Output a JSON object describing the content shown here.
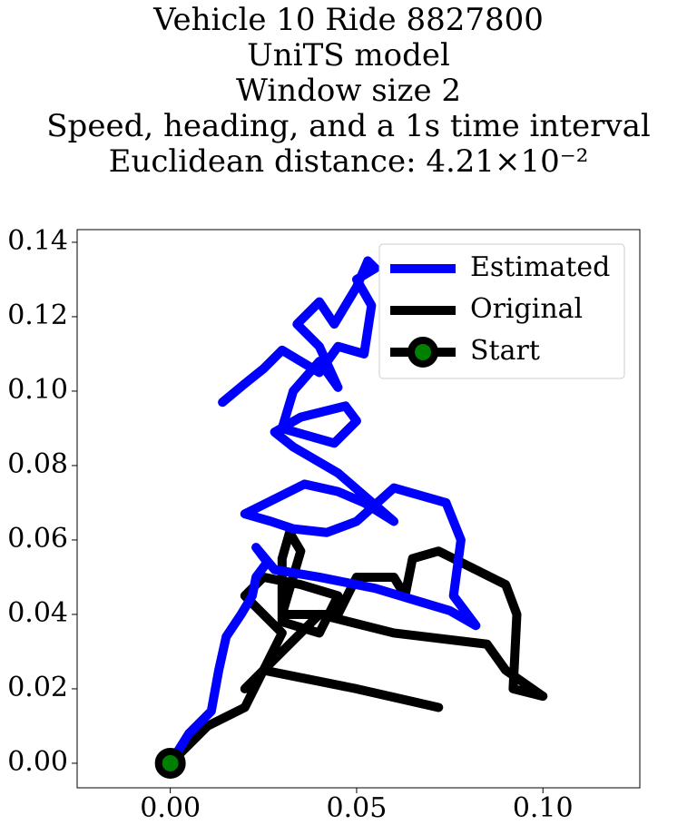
{
  "chart_data": {
    "type": "line",
    "title": [
      "Vehicle 10 Ride 8827800",
      "UniTS model",
      "Window size 2",
      "Speed, heading, and a 1s time interval",
      "Euclidean distance: 4.21×10⁻²"
    ],
    "series": [
      {
        "name": "Estimated",
        "color": "#0000ff",
        "x": [
          0,
          0.005,
          0.011,
          0.013,
          0.015,
          0.019,
          0.022,
          0.023,
          0.026,
          0.023,
          0.028,
          0.04,
          0.055,
          0.065,
          0.075,
          0.082,
          0.076,
          0.078,
          0.074,
          0.06,
          0.05,
          0.042,
          0.033,
          0.027,
          0.02,
          0.026,
          0.036,
          0.045,
          0.052,
          0.06,
          0.045,
          0.033,
          0.028,
          0.035,
          0.047,
          0.05,
          0.044,
          0.03,
          0.033,
          0.04,
          0.045,
          0.04,
          0.034,
          0.04,
          0.044,
          0.05,
          0.053,
          0.055,
          0.05,
          0.054,
          0.052,
          0.045,
          0.04,
          0.03,
          0.025,
          0.02,
          0.014
        ],
        "y": [
          0,
          0.008,
          0.014,
          0.025,
          0.034,
          0.04,
          0.045,
          0.05,
          0.054,
          0.058,
          0.052,
          0.05,
          0.047,
          0.044,
          0.041,
          0.037,
          0.045,
          0.06,
          0.07,
          0.074,
          0.065,
          0.062,
          0.063,
          0.065,
          0.067,
          0.07,
          0.075,
          0.073,
          0.07,
          0.065,
          0.078,
          0.085,
          0.089,
          0.093,
          0.096,
          0.092,
          0.086,
          0.09,
          0.1,
          0.108,
          0.101,
          0.112,
          0.118,
          0.124,
          0.118,
          0.128,
          0.135,
          0.133,
          0.13,
          0.123,
          0.11,
          0.112,
          0.105,
          0.111,
          0.106,
          0.102,
          0.097
        ]
      },
      {
        "name": "Original",
        "color": "#000000",
        "x": [
          0,
          0.01,
          0.02,
          0.025,
          0.03,
          0.02,
          0.025,
          0.035,
          0.045,
          0.04,
          0.03,
          0.03,
          0.032,
          0.035,
          0.03,
          0.045,
          0.05,
          0.06,
          0.063,
          0.065,
          0.072,
          0.09,
          0.093,
          0.092,
          0.1,
          0.09,
          0.085,
          0.06,
          0.04,
          0.03,
          0.02,
          0.025,
          0.05,
          0.072
        ],
        "y": [
          0,
          0.01,
          0.015,
          0.025,
          0.035,
          0.045,
          0.05,
          0.048,
          0.045,
          0.035,
          0.038,
          0.055,
          0.062,
          0.057,
          0.04,
          0.04,
          0.05,
          0.05,
          0.045,
          0.055,
          0.057,
          0.048,
          0.04,
          0.02,
          0.018,
          0.025,
          0.032,
          0.035,
          0.04,
          0.03,
          0.02,
          0.025,
          0.02,
          0.015
        ]
      }
    ],
    "start": {
      "name": "Start",
      "x": 0,
      "y": 0,
      "color": "#000000",
      "marker_color": "#008000"
    },
    "xlim": [
      -0.025,
      0.126
    ],
    "ylim": [
      -0.0066,
      0.1434
    ],
    "xticks": [
      {
        "value": 0,
        "label": "0.00"
      },
      {
        "value": 0.05,
        "label": "0.05"
      },
      {
        "value": 0.1,
        "label": "0.10"
      }
    ],
    "yticks": [
      {
        "value": 0,
        "label": "0.00"
      },
      {
        "value": 0.02,
        "label": "0.02"
      },
      {
        "value": 0.04,
        "label": "0.04"
      },
      {
        "value": 0.06,
        "label": "0.06"
      },
      {
        "value": 0.08,
        "label": "0.08"
      },
      {
        "value": 0.1,
        "label": "0.10"
      },
      {
        "value": 0.12,
        "label": "0.12"
      },
      {
        "value": 0.14,
        "label": "0.14"
      }
    ],
    "legend": "upper right"
  }
}
